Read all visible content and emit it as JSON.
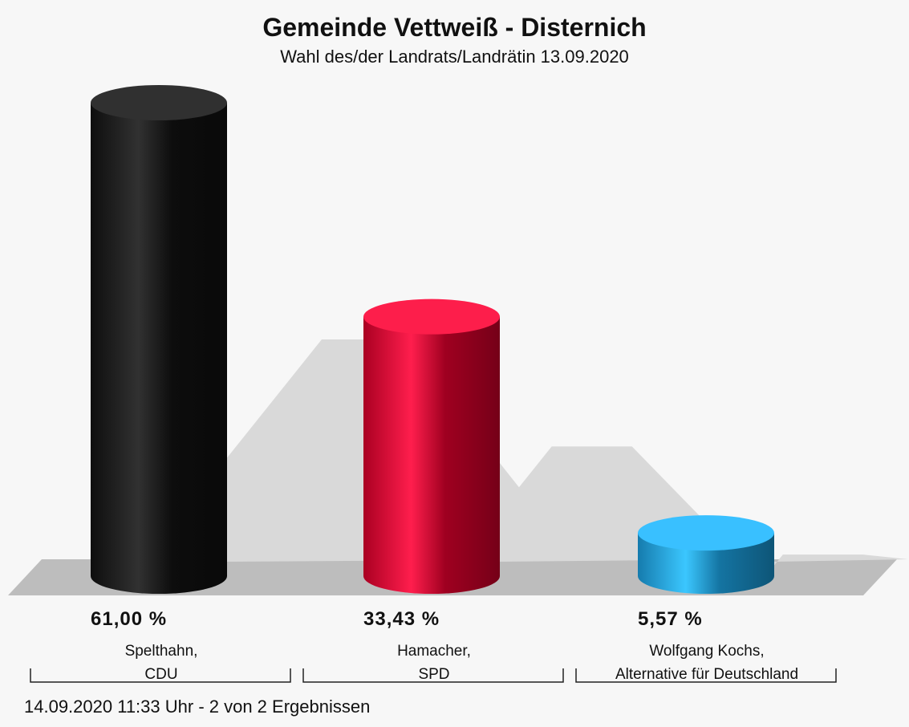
{
  "chart_data": {
    "type": "bar",
    "title": "Gemeinde Vettweiß - Disternich",
    "subtitle": "Wahl des/der Landrats/Landrätin 13.09.2020",
    "categories": [
      "Spelthahn,\nCDU",
      "Hamacher,\nSPD",
      "Wolfgang Kochs,\nAlternative für Deutschland"
    ],
    "values": [
      61.0,
      33.43,
      5.57
    ],
    "value_labels": [
      "61,00 %",
      "33,43 %",
      "5,57 %"
    ],
    "colors": [
      "#111111",
      "#d4002b",
      "#1a9ad8"
    ],
    "footer": "14.09.2020 11:33 Uhr - 2 von 2 Ergebnissen"
  }
}
